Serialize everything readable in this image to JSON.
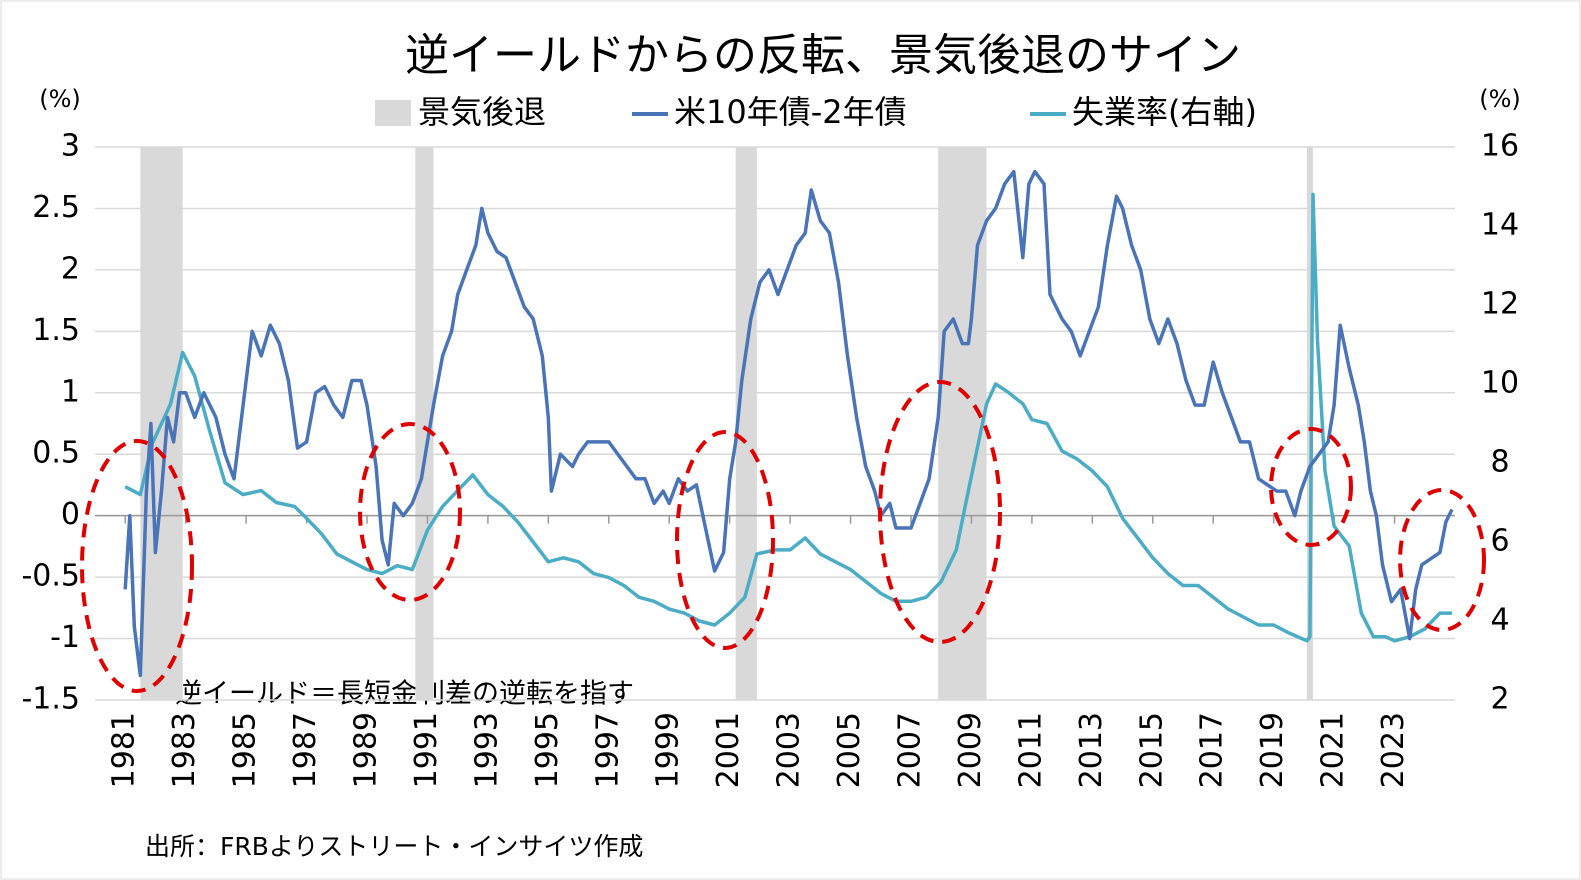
{
  "chart_data": {
    "type": "line",
    "title": "逆イールドからの反転、景気後退のサイン",
    "y_unit": "(%)",
    "y2_unit": "(%)",
    "recession_label": "景気後退",
    "recession_color": "#d9d9d9",
    "recessions": [
      [
        1981.5,
        1982.9
      ],
      [
        1990.6,
        1991.2
      ],
      [
        2001.2,
        2001.9
      ],
      [
        2007.9,
        2009.5
      ],
      [
        2020.1,
        2020.3
      ]
    ],
    "annotation": "逆イールド＝長短金利差の逆転を指す",
    "source": "出所：FRBよりストリート・インサイツ作成",
    "xlim": [
      1980,
      2025
    ],
    "xticks": [
      1981,
      1983,
      1985,
      1987,
      1989,
      1991,
      1993,
      1995,
      1997,
      1999,
      2001,
      2003,
      2005,
      2007,
      2009,
      2011,
      2013,
      2015,
      2017,
      2019,
      2021,
      2023
    ],
    "ylim": [
      -1.5,
      3
    ],
    "yticks": [
      -1.5,
      -1,
      -0.5,
      0,
      0.5,
      1,
      1.5,
      2,
      2.5,
      3
    ],
    "y2lim": [
      2,
      16
    ],
    "y2ticks": [
      2,
      4,
      6,
      8,
      10,
      12,
      14,
      16
    ],
    "grid": true,
    "series": [
      {
        "name": "米10年債-2年債",
        "color": "#4a74b8",
        "x": [
          1981.0,
          1981.15,
          1981.3,
          1981.5,
          1981.7,
          1981.85,
          1982.0,
          1982.2,
          1982.4,
          1982.6,
          1982.8,
          1983.0,
          1983.3,
          1983.6,
          1984.0,
          1984.3,
          1984.6,
          1984.9,
          1985.2,
          1985.5,
          1985.8,
          1986.1,
          1986.4,
          1986.7,
          1987.0,
          1987.3,
          1987.6,
          1987.9,
          1988.2,
          1988.5,
          1988.8,
          1989.0,
          1989.3,
          1989.5,
          1989.7,
          1989.9,
          1990.2,
          1990.5,
          1990.8,
          1991.0,
          1991.2,
          1991.5,
          1991.8,
          1992.0,
          1992.3,
          1992.6,
          1992.8,
          1993.0,
          1993.3,
          1993.6,
          1993.9,
          1994.2,
          1994.5,
          1994.8,
          1995.0,
          1995.1,
          1995.4,
          1995.8,
          1996.0,
          1996.3,
          1996.6,
          1997.0,
          1997.3,
          1997.6,
          1997.9,
          1998.2,
          1998.5,
          1998.8,
          1999.0,
          1999.3,
          1999.6,
          1999.9,
          2000.2,
          2000.5,
          2000.8,
          2001.0,
          2001.2,
          2001.4,
          2001.7,
          2002.0,
          2002.3,
          2002.6,
          2002.9,
          2003.2,
          2003.5,
          2003.7,
          2004.0,
          2004.3,
          2004.6,
          2004.9,
          2005.2,
          2005.5,
          2005.8,
          2006.0,
          2006.3,
          2006.5,
          2006.8,
          2007.0,
          2007.3,
          2007.6,
          2007.9,
          2008.1,
          2008.4,
          2008.7,
          2008.9,
          2009.0,
          2009.2,
          2009.5,
          2009.8,
          2010.1,
          2010.4,
          2010.7,
          2010.9,
          2011.1,
          2011.4,
          2011.6,
          2011.8,
          2012.0,
          2012.3,
          2012.6,
          2012.9,
          2013.2,
          2013.5,
          2013.8,
          2014.0,
          2014.3,
          2014.6,
          2014.9,
          2015.2,
          2015.5,
          2015.8,
          2016.1,
          2016.4,
          2016.7,
          2017.0,
          2017.3,
          2017.6,
          2017.9,
          2018.2,
          2018.5,
          2018.8,
          2019.1,
          2019.4,
          2019.7,
          2019.9,
          2020.2,
          2020.5,
          2020.8,
          2021.0,
          2021.2,
          2021.5,
          2021.8,
          2022.0,
          2022.2,
          2022.4,
          2022.6,
          2022.9,
          2023.2,
          2023.5,
          2023.7,
          2023.9,
          2024.2,
          2024.5,
          2024.7,
          2024.9
        ],
        "values": [
          -0.6,
          0.0,
          -0.9,
          -1.3,
          0.2,
          0.75,
          -0.3,
          0.2,
          0.8,
          0.6,
          1.0,
          1.0,
          0.8,
          1.0,
          0.8,
          0.5,
          0.3,
          0.9,
          1.5,
          1.3,
          1.55,
          1.4,
          1.1,
          0.55,
          0.6,
          1.0,
          1.05,
          0.9,
          0.8,
          1.1,
          1.1,
          0.9,
          0.4,
          -0.2,
          -0.4,
          0.1,
          0.0,
          0.1,
          0.3,
          0.6,
          0.9,
          1.3,
          1.5,
          1.8,
          2.0,
          2.2,
          2.5,
          2.3,
          2.15,
          2.1,
          1.9,
          1.7,
          1.6,
          1.3,
          0.8,
          0.2,
          0.5,
          0.4,
          0.5,
          0.6,
          0.6,
          0.6,
          0.5,
          0.4,
          0.3,
          0.3,
          0.1,
          0.2,
          0.1,
          0.3,
          0.2,
          0.25,
          -0.1,
          -0.45,
          -0.3,
          0.3,
          0.6,
          1.1,
          1.6,
          1.9,
          2.0,
          1.8,
          2.0,
          2.2,
          2.3,
          2.65,
          2.4,
          2.3,
          1.9,
          1.3,
          0.8,
          0.4,
          0.2,
          0.0,
          0.1,
          -0.1,
          -0.1,
          -0.1,
          0.1,
          0.3,
          0.8,
          1.5,
          1.6,
          1.4,
          1.4,
          1.6,
          2.2,
          2.4,
          2.5,
          2.7,
          2.8,
          2.1,
          2.7,
          2.8,
          2.7,
          1.8,
          1.7,
          1.6,
          1.5,
          1.3,
          1.5,
          1.7,
          2.2,
          2.6,
          2.5,
          2.2,
          2.0,
          1.6,
          1.4,
          1.6,
          1.4,
          1.1,
          0.9,
          0.9,
          1.25,
          1.0,
          0.8,
          0.6,
          0.6,
          0.3,
          0.25,
          0.2,
          0.2,
          0.0,
          0.2,
          0.4,
          0.5,
          0.6,
          0.9,
          1.55,
          1.2,
          0.9,
          0.6,
          0.2,
          0.0,
          -0.4,
          -0.7,
          -0.6,
          -1.0,
          -0.6,
          -0.4,
          -0.35,
          -0.3,
          -0.05,
          0.05
        ]
      },
      {
        "name": "失業率(右軸)",
        "color": "#4bacc6",
        "axis": "y2",
        "x": [
          1981.0,
          1981.5,
          1981.9,
          1982.5,
          1982.9,
          1983.3,
          1983.8,
          1984.3,
          1984.9,
          1985.5,
          1986.0,
          1986.6,
          1987.0,
          1987.5,
          1988.0,
          1988.5,
          1989.0,
          1989.5,
          1990.0,
          1990.5,
          1991.0,
          1991.5,
          1992.0,
          1992.5,
          1993.0,
          1993.5,
          1994.0,
          1994.5,
          1995.0,
          1995.5,
          1996.0,
          1996.5,
          1997.0,
          1997.5,
          1998.0,
          1998.5,
          1999.0,
          1999.5,
          2000.0,
          2000.5,
          2001.0,
          2001.5,
          2001.9,
          2002.5,
          2003.0,
          2003.5,
          2004.0,
          2004.5,
          2005.0,
          2005.5,
          2006.0,
          2006.5,
          2007.0,
          2007.5,
          2008.0,
          2008.5,
          2008.9,
          2009.5,
          2009.8,
          2010.2,
          2010.7,
          2011.0,
          2011.5,
          2012.0,
          2012.5,
          2013.0,
          2013.5,
          2014.0,
          2014.5,
          2015.0,
          2015.5,
          2016.0,
          2016.5,
          2017.0,
          2017.5,
          2018.0,
          2018.5,
          2019.0,
          2019.5,
          2020.1,
          2020.2,
          2020.3,
          2020.45,
          2020.7,
          2021.0,
          2021.5,
          2021.9,
          2022.3,
          2022.7,
          2023.0,
          2023.5,
          2024.0,
          2024.5,
          2024.9
        ],
        "values": [
          7.4,
          7.2,
          8.5,
          9.5,
          10.8,
          10.2,
          8.8,
          7.5,
          7.2,
          7.3,
          7.0,
          6.9,
          6.6,
          6.2,
          5.7,
          5.5,
          5.3,
          5.2,
          5.4,
          5.3,
          6.3,
          6.9,
          7.3,
          7.7,
          7.2,
          6.9,
          6.5,
          6.0,
          5.5,
          5.6,
          5.5,
          5.2,
          5.1,
          4.9,
          4.6,
          4.5,
          4.3,
          4.2,
          4.0,
          3.9,
          4.2,
          4.6,
          5.7,
          5.8,
          5.8,
          6.1,
          5.7,
          5.5,
          5.3,
          5.0,
          4.7,
          4.5,
          4.5,
          4.6,
          5.0,
          5.8,
          7.3,
          9.5,
          10.0,
          9.8,
          9.5,
          9.1,
          9.0,
          8.3,
          8.1,
          7.8,
          7.4,
          6.6,
          6.1,
          5.6,
          5.2,
          4.9,
          4.9,
          4.6,
          4.3,
          4.1,
          3.9,
          3.9,
          3.7,
          3.5,
          3.6,
          14.8,
          11.1,
          7.8,
          6.4,
          5.9,
          4.2,
          3.6,
          3.6,
          3.5,
          3.6,
          3.8,
          4.2,
          4.2
        ]
      }
    ]
  }
}
